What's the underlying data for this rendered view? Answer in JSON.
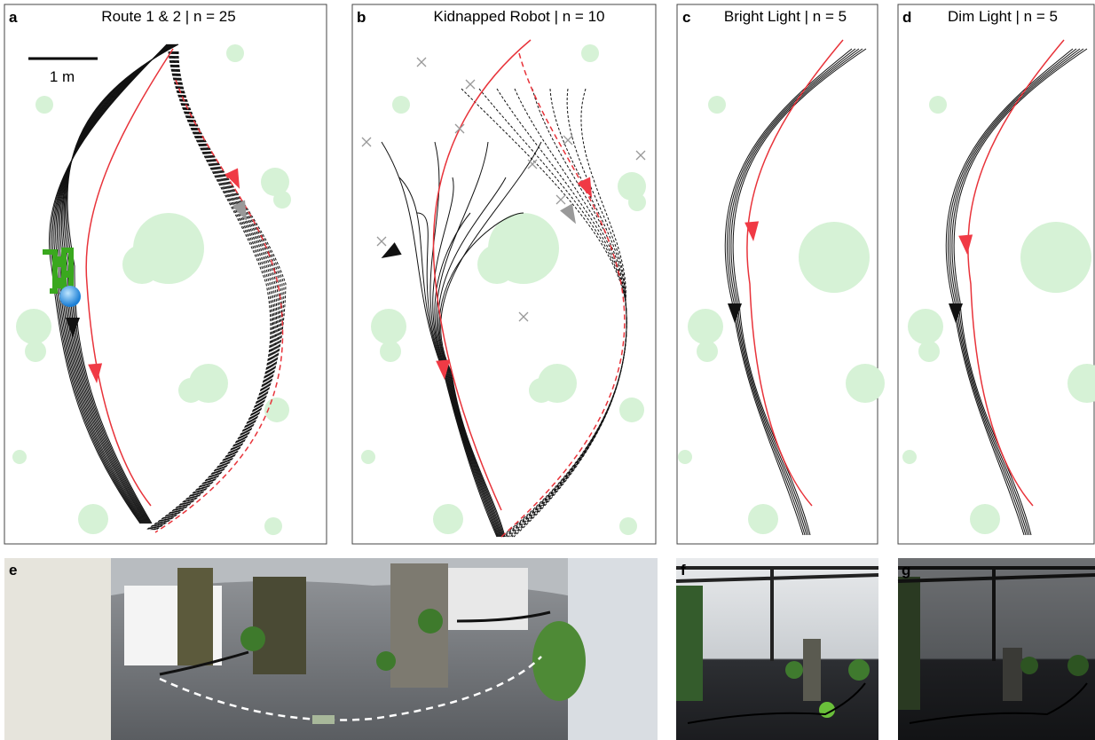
{
  "panels": [
    {
      "label": "a",
      "title": "Route 1 & 2 | n = 25",
      "scale_bar": "1 m"
    },
    {
      "label": "b",
      "title": "Kidnapped Robot | n = 10"
    },
    {
      "label": "c",
      "title": "Bright Light | n = 5"
    },
    {
      "label": "d",
      "title": "Dim Light | n = 5"
    },
    {
      "label": "e"
    },
    {
      "label": "f"
    },
    {
      "label": "g"
    }
  ]
}
